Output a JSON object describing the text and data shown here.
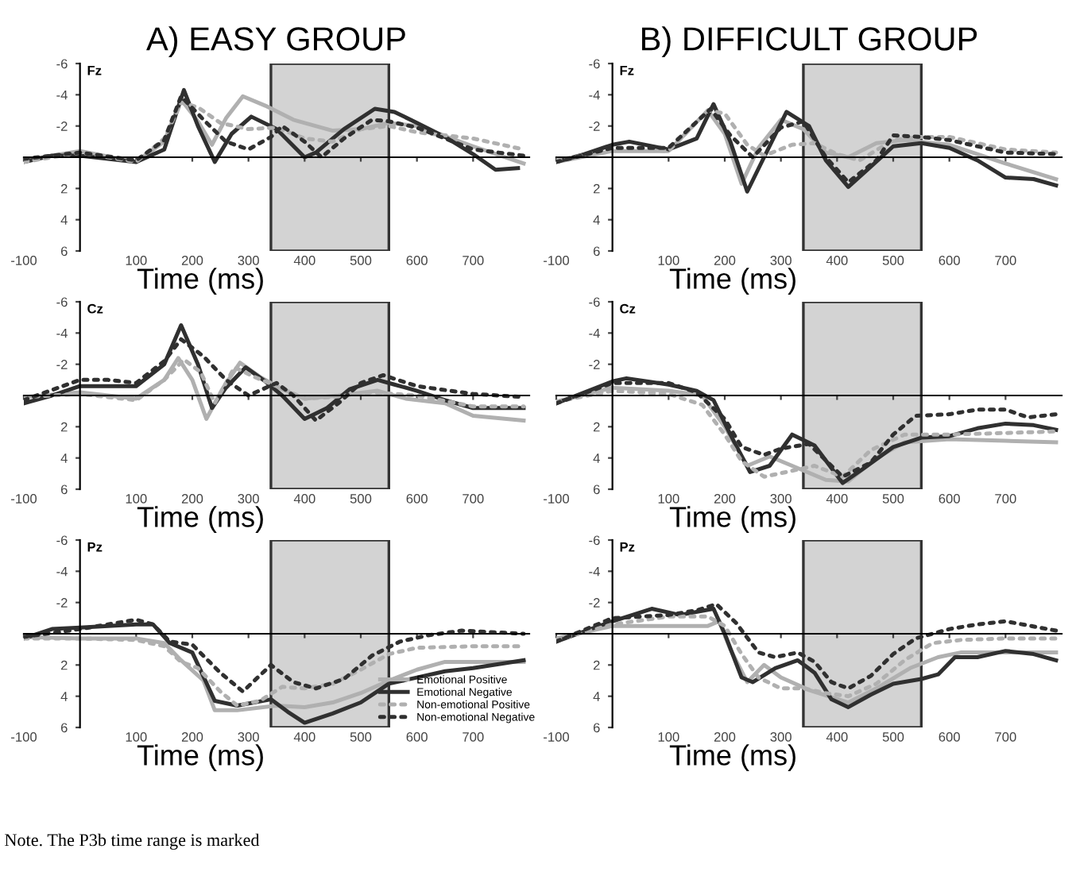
{
  "chart_data": [
    {
      "type": "line",
      "title": "A) EASY GROUP",
      "xlabel": "Time (ms)",
      "annotations": [
        "Fz"
      ],
      "xlim": [
        -100,
        800
      ],
      "ylim": [
        6,
        -6
      ],
      "xticks": [
        -100,
        100,
        200,
        300,
        400,
        500,
        600,
        700
      ],
      "yticks": [
        -6,
        -4,
        -2,
        2,
        4,
        6
      ],
      "grid": false,
      "bands": [
        {
          "axis": "x",
          "from": 340,
          "to": 550,
          "color": "#d3d3d3"
        }
      ],
      "series": [
        {
          "color": "#b0b0b0",
          "line_style": "solid",
          "x": [
            -100,
            0,
            100,
            150,
            180,
            210,
            235,
            260,
            290,
            330,
            380,
            450,
            500,
            550,
            600,
            700,
            790
          ],
          "values": [
            0.2,
            -0.4,
            0.3,
            -1,
            -3.7,
            -2.3,
            -0.8,
            -2.5,
            -3.9,
            -3.3,
            -2.4,
            -1.7,
            -1.8,
            -2.2,
            -2.0,
            -0.7,
            0.4
          ]
        },
        {
          "color": "#303030",
          "line_style": "solid",
          "x": [
            -100,
            -50,
            0,
            50,
            100,
            150,
            185,
            210,
            240,
            270,
            305,
            350,
            400,
            420,
            470,
            525,
            560,
            600,
            650,
            700,
            740,
            780
          ],
          "values": [
            0.3,
            -0.1,
            -0.1,
            0.1,
            0.3,
            -0.5,
            -4.3,
            -2,
            0.3,
            -1.5,
            -2.6,
            -1.8,
            0,
            -0.3,
            -1.8,
            -3.1,
            -2.9,
            -2.2,
            -1.3,
            -0.2,
            0.8,
            0.7
          ]
        },
        {
          "color": "#b0b0b0",
          "line_style": "dotted",
          "x": [
            -100,
            0,
            100,
            150,
            180,
            210,
            250,
            300,
            350,
            400,
            450,
            500,
            550,
            600,
            700,
            790
          ],
          "values": [
            0.3,
            -0.3,
            0.3,
            -1.2,
            -3.5,
            -3.2,
            -2.2,
            -1.8,
            -1.9,
            -1.2,
            -1.0,
            -1.8,
            -2.0,
            -1.6,
            -1.2,
            -0.5
          ]
        },
        {
          "color": "#303030",
          "line_style": "dotted",
          "x": [
            -100,
            0,
            100,
            150,
            180,
            220,
            260,
            300,
            340,
            360,
            400,
            430,
            470,
            520,
            550,
            600,
            650,
            700,
            790
          ],
          "values": [
            0.1,
            -0.3,
            0.2,
            -1.1,
            -3.9,
            -2.4,
            -1.0,
            -0.5,
            -1.3,
            -2.0,
            -1.0,
            0,
            -1.2,
            -2.4,
            -2.3,
            -1.9,
            -1.2,
            -0.5,
            -0.1
          ]
        }
      ]
    },
    {
      "type": "line",
      "title": "B) DIFFICULT GROUP",
      "xlabel": "Time (ms)",
      "annotations": [
        "Fz"
      ],
      "xlim": [
        -100,
        800
      ],
      "ylim": [
        6,
        -6
      ],
      "xticks": [
        -100,
        100,
        200,
        300,
        400,
        500,
        600,
        700
      ],
      "yticks": [
        -6,
        -4,
        -2,
        2,
        4,
        6
      ],
      "grid": false,
      "bands": [
        {
          "axis": "x",
          "from": 340,
          "to": 550,
          "color": "#d3d3d3"
        }
      ],
      "series": [
        {
          "color": "#b0b0b0",
          "line_style": "solid",
          "x": [
            -100,
            0,
            100,
            170,
            200,
            230,
            260,
            300,
            340,
            380,
            420,
            470,
            520,
            600,
            700,
            790
          ],
          "values": [
            0.3,
            -0.4,
            -0.4,
            -3.0,
            -1.5,
            1.7,
            -0.6,
            -2.4,
            -1.8,
            -0.3,
            0,
            -0.9,
            -1.1,
            -0.8,
            0.4,
            1.4
          ]
        },
        {
          "color": "#303030",
          "line_style": "solid",
          "x": [
            -100,
            -50,
            0,
            30,
            100,
            150,
            180,
            210,
            240,
            270,
            310,
            350,
            380,
            420,
            460,
            500,
            550,
            600,
            650,
            700,
            750,
            790
          ],
          "values": [
            0.3,
            -0.2,
            -0.8,
            -1.0,
            -0.5,
            -1.2,
            -3.4,
            -1,
            2.2,
            0,
            -2.9,
            -2.0,
            0.2,
            1.9,
            0.6,
            -0.7,
            -0.9,
            -0.6,
            0.2,
            1.3,
            1.4,
            1.8
          ]
        },
        {
          "color": "#b0b0b0",
          "line_style": "dotted",
          "x": [
            -100,
            0,
            100,
            170,
            200,
            240,
            270,
            320,
            360,
            400,
            440,
            500,
            550,
            600,
            700,
            790
          ],
          "values": [
            0.2,
            -0.5,
            -0.4,
            -3,
            -2.8,
            -0.8,
            -0.1,
            -0.8,
            -0.9,
            -0.2,
            0.2,
            -1.1,
            -1.3,
            -1.3,
            -0.5,
            -0.3
          ]
        },
        {
          "color": "#303030",
          "line_style": "dotted",
          "x": [
            -100,
            0,
            100,
            175,
            210,
            250,
            300,
            340,
            380,
            420,
            470,
            500,
            550,
            600,
            700,
            790
          ],
          "values": [
            0.3,
            -0.6,
            -0.6,
            -3.1,
            -1.4,
            0,
            -1.9,
            -2.3,
            0,
            1.6,
            0.2,
            -1.4,
            -1.3,
            -1.1,
            -0.3,
            -0.2
          ]
        }
      ]
    },
    {
      "type": "line",
      "xlabel": "Time (ms)",
      "annotations": [
        "Cz"
      ],
      "xlim": [
        -100,
        800
      ],
      "ylim": [
        6,
        -6
      ],
      "xticks": [
        -100,
        100,
        200,
        300,
        400,
        500,
        600,
        700
      ],
      "yticks": [
        -6,
        -4,
        -2,
        2,
        4,
        6
      ],
      "grid": false,
      "bands": [
        {
          "axis": "x",
          "from": 340,
          "to": 550,
          "color": "#d3d3d3"
        }
      ],
      "series": [
        {
          "color": "#b0b0b0",
          "line_style": "solid",
          "x": [
            -100,
            0,
            100,
            150,
            175,
            200,
            225,
            255,
            285,
            320,
            360,
            400,
            460,
            530,
            580,
            650,
            700,
            790
          ],
          "values": [
            0.1,
            -0.2,
            0.2,
            -1,
            -2.4,
            -1,
            1.5,
            -0.5,
            -2.1,
            -1.2,
            -0.4,
            0.2,
            0,
            -0.3,
            0.2,
            0.5,
            1.3,
            1.6
          ]
        },
        {
          "color": "#303030",
          "line_style": "solid",
          "x": [
            -100,
            -50,
            0,
            100,
            150,
            180,
            210,
            235,
            260,
            295,
            330,
            360,
            400,
            440,
            480,
            530,
            560,
            600,
            650,
            700,
            790
          ],
          "values": [
            0.5,
            0,
            -0.6,
            -0.6,
            -2,
            -4.5,
            -2,
            0.8,
            -0.5,
            -1.8,
            -0.9,
            0,
            1.5,
            0.8,
            -0.4,
            -1.0,
            -0.7,
            -0.3,
            0.3,
            0.8,
            0.8
          ]
        },
        {
          "color": "#b0b0b0",
          "line_style": "dotted",
          "x": [
            -100,
            0,
            100,
            150,
            185,
            215,
            240,
            275,
            310,
            350,
            400,
            450,
            520,
            600,
            700,
            790
          ],
          "values": [
            0.1,
            -0.1,
            0.3,
            -1.0,
            -2.3,
            -1.5,
            0.5,
            -1.8,
            -1.2,
            -0.6,
            0.2,
            0.1,
            -0.2,
            0,
            0.7,
            0.7
          ]
        },
        {
          "color": "#303030",
          "line_style": "dotted",
          "x": [
            -100,
            0,
            50,
            100,
            150,
            180,
            220,
            260,
            300,
            350,
            380,
            420,
            460,
            500,
            540,
            600,
            700,
            790
          ],
          "values": [
            0.3,
            -1.0,
            -1.0,
            -0.8,
            -2.2,
            -3.6,
            -2.5,
            -1,
            0,
            -0.8,
            0,
            1.6,
            0.5,
            -0.8,
            -1.3,
            -0.6,
            -0.1,
            0.1
          ]
        }
      ]
    },
    {
      "type": "line",
      "xlabel": "Time (ms)",
      "annotations": [
        "Cz"
      ],
      "xlim": [
        -100,
        800
      ],
      "ylim": [
        6,
        -6
      ],
      "xticks": [
        -100,
        100,
        200,
        300,
        400,
        500,
        600,
        700
      ],
      "yticks": [
        -6,
        -4,
        -2,
        2,
        4,
        6
      ],
      "grid": false,
      "bands": [
        {
          "axis": "x",
          "from": 340,
          "to": 550,
          "color": "#d3d3d3"
        }
      ],
      "series": [
        {
          "color": "#b0b0b0",
          "line_style": "solid",
          "x": [
            -100,
            0,
            100,
            160,
            200,
            240,
            280,
            320,
            380,
            420,
            470,
            520,
            600,
            700,
            790
          ],
          "values": [
            0.4,
            -0.5,
            -0.3,
            0,
            2.0,
            4.5,
            3.9,
            4.5,
            5.4,
            5.5,
            4,
            3.0,
            2.8,
            2.9,
            3.0
          ]
        },
        {
          "color": "#303030",
          "line_style": "solid",
          "x": [
            -100,
            0,
            25,
            100,
            150,
            180,
            210,
            245,
            280,
            320,
            360,
            410,
            450,
            500,
            550,
            600,
            650,
            700,
            750,
            790
          ],
          "values": [
            0.5,
            -0.9,
            -1.1,
            -0.7,
            -0.3,
            0.3,
            2.5,
            4.9,
            4.5,
            2.5,
            3.2,
            5.6,
            4.6,
            3.3,
            2.7,
            2.6,
            2.1,
            1.8,
            1.9,
            2.2
          ]
        },
        {
          "color": "#b0b0b0",
          "line_style": "dotted",
          "x": [
            -100,
            0,
            100,
            160,
            200,
            230,
            270,
            310,
            360,
            410,
            460,
            520,
            600,
            700,
            790
          ],
          "values": [
            0.4,
            -0.3,
            -0.1,
            0.6,
            2.5,
            4.2,
            5.2,
            4.9,
            4.5,
            5.2,
            3.5,
            2.5,
            2.5,
            2.4,
            2.3
          ]
        },
        {
          "color": "#303030",
          "line_style": "dotted",
          "x": [
            -100,
            0,
            100,
            150,
            200,
            230,
            270,
            300,
            350,
            410,
            460,
            500,
            540,
            600,
            650,
            700,
            740,
            790
          ],
          "values": [
            0.5,
            -0.8,
            -0.8,
            -0.2,
            1.5,
            3.3,
            3.8,
            3.4,
            3.1,
            5.2,
            4.3,
            2.5,
            1.3,
            1.2,
            0.9,
            0.9,
            1.4,
            1.2
          ]
        }
      ]
    },
    {
      "type": "line",
      "xlabel": "Time (ms)",
      "annotations": [
        "Pz",
        "Note. The P3b time range is marked"
      ],
      "xlim": [
        -100,
        800
      ],
      "ylim": [
        6,
        -6
      ],
      "xticks": [
        -100,
        100,
        200,
        300,
        400,
        500,
        600,
        700
      ],
      "yticks": [
        -6,
        -4,
        -2,
        2,
        4,
        6
      ],
      "grid": false,
      "legend": "bottom right",
      "bands": [
        {
          "axis": "x",
          "from": 340,
          "to": 550,
          "color": "#d3d3d3"
        }
      ],
      "series": [
        {
          "name": "Emotional Positive",
          "color": "#b0b0b0",
          "line_style": "solid",
          "x": [
            -100,
            0,
            100,
            150,
            180,
            220,
            240,
            280,
            350,
            400,
            450,
            500,
            550,
            600,
            650,
            700,
            790
          ],
          "values": [
            0.2,
            0.3,
            0.3,
            0.6,
            1.7,
            3.0,
            4.9,
            4.9,
            4.6,
            4.7,
            4.4,
            3.8,
            3.0,
            2.3,
            1.8,
            1.8,
            1.8
          ]
        },
        {
          "name": "Emotional Negative",
          "color": "#303030",
          "line_style": "solid",
          "x": [
            -100,
            -50,
            0,
            100,
            130,
            160,
            200,
            240,
            280,
            340,
            370,
            400,
            450,
            500,
            550,
            600,
            650,
            700,
            790
          ],
          "values": [
            0.3,
            -0.3,
            -0.4,
            -0.6,
            -0.6,
            0.6,
            1.2,
            4.3,
            4.6,
            4.2,
            5.0,
            5.7,
            5.1,
            4.4,
            3.2,
            2.8,
            2.4,
            2.2,
            1.7
          ]
        },
        {
          "name": "Non-emotional Positive",
          "color": "#b0b0b0",
          "line_style": "dotted",
          "x": [
            -100,
            0,
            100,
            150,
            180,
            210,
            250,
            280,
            320,
            360,
            400,
            450,
            500,
            550,
            600,
            700,
            790
          ],
          "values": [
            0.3,
            0.3,
            0.4,
            0.8,
            1.8,
            2.2,
            3.7,
            4.6,
            4.3,
            3.4,
            3.5,
            3.2,
            2.3,
            1.3,
            0.9,
            0.8,
            0.8
          ]
        },
        {
          "name": "Non-emotional Negative",
          "color": "#303030",
          "line_style": "dotted",
          "x": [
            -100,
            0,
            100,
            130,
            160,
            200,
            250,
            290,
            340,
            380,
            420,
            470,
            520,
            570,
            620,
            680,
            790
          ],
          "values": [
            0.2,
            -0.3,
            -0.9,
            -0.6,
            0.5,
            0.7,
            2.5,
            3.7,
            2.0,
            3.1,
            3.5,
            2.9,
            1.4,
            0.5,
            0.1,
            -0.2,
            0
          ]
        }
      ]
    },
    {
      "type": "line",
      "xlabel": "Time (ms)",
      "annotations": [
        "Pz"
      ],
      "xlim": [
        -100,
        800
      ],
      "ylim": [
        6,
        -6
      ],
      "xticks": [
        -100,
        100,
        200,
        300,
        400,
        500,
        600,
        700
      ],
      "yticks": [
        -6,
        -4,
        -2,
        2,
        4,
        6
      ],
      "grid": false,
      "bands": [
        {
          "axis": "x",
          "from": 340,
          "to": 550,
          "color": "#d3d3d3"
        }
      ],
      "series": [
        {
          "color": "#b0b0b0",
          "line_style": "solid",
          "x": [
            -100,
            0,
            100,
            170,
            190,
            210,
            240,
            270,
            300,
            350,
            420,
            470,
            530,
            580,
            620,
            700,
            790
          ],
          "values": [
            0.3,
            -0.5,
            -0.5,
            -0.5,
            -0.8,
            1.0,
            3.1,
            2.0,
            2.8,
            3.6,
            4.4,
            3.5,
            2.2,
            1.5,
            1.2,
            1.2,
            1.2
          ]
        },
        {
          "color": "#303030",
          "line_style": "solid",
          "x": [
            -100,
            0,
            70,
            120,
            180,
            200,
            230,
            250,
            290,
            330,
            360,
            390,
            420,
            460,
            500,
            550,
            580,
            610,
            650,
            700,
            750,
            790
          ],
          "values": [
            0.5,
            -0.8,
            -1.6,
            -1.2,
            -1.6,
            0,
            2.8,
            3.1,
            2.2,
            1.7,
            2.5,
            4.2,
            4.7,
            3.9,
            3.2,
            2.9,
            2.6,
            1.5,
            1.5,
            1.1,
            1.3,
            1.7
          ]
        },
        {
          "color": "#b0b0b0",
          "line_style": "dotted",
          "x": [
            -100,
            0,
            100,
            170,
            200,
            230,
            260,
            300,
            340,
            380,
            420,
            470,
            520,
            570,
            620,
            700,
            790
          ],
          "values": [
            0.4,
            -0.6,
            -1.1,
            -1.1,
            -0.5,
            1.3,
            2.8,
            3.5,
            3.5,
            3.8,
            4.0,
            3.2,
            1.7,
            0.6,
            0.4,
            0.3,
            0.3
          ]
        },
        {
          "color": "#303030",
          "line_style": "dotted",
          "x": [
            -100,
            0,
            100,
            150,
            185,
            220,
            260,
            290,
            330,
            360,
            390,
            420,
            460,
            500,
            540,
            600,
            650,
            700,
            790
          ],
          "values": [
            0.5,
            -1.0,
            -1.2,
            -1.5,
            -1.9,
            -0.7,
            1.2,
            1.5,
            1.2,
            1.8,
            3.1,
            3.5,
            2.7,
            1.3,
            0.3,
            -0.3,
            -0.6,
            -0.8,
            -0.2
          ]
        }
      ]
    }
  ]
}
